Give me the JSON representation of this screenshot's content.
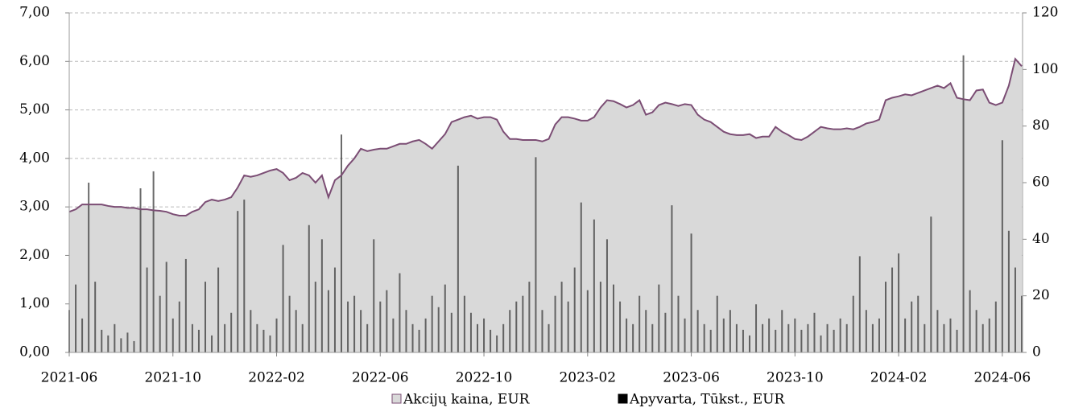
{
  "chart_data": {
    "type": "combo",
    "categories": [
      "2021-06",
      null,
      null,
      null,
      null,
      null,
      null,
      null,
      null,
      null,
      null,
      null,
      null,
      null,
      null,
      null,
      "2021-10",
      null,
      null,
      null,
      null,
      null,
      null,
      null,
      null,
      null,
      null,
      null,
      null,
      null,
      null,
      null,
      "2022-02",
      null,
      null,
      null,
      null,
      null,
      null,
      null,
      null,
      null,
      null,
      null,
      null,
      null,
      null,
      null,
      "2022-06",
      null,
      null,
      null,
      null,
      null,
      null,
      null,
      null,
      null,
      null,
      null,
      null,
      null,
      null,
      null,
      "2022-10",
      null,
      null,
      null,
      null,
      null,
      null,
      null,
      null,
      null,
      null,
      null,
      null,
      null,
      null,
      null,
      "2023-02",
      null,
      null,
      null,
      null,
      null,
      null,
      null,
      null,
      null,
      null,
      null,
      null,
      null,
      null,
      null,
      "2023-06",
      null,
      null,
      null,
      null,
      null,
      null,
      null,
      null,
      null,
      null,
      null,
      null,
      null,
      null,
      null,
      "2023-10",
      null,
      null,
      null,
      null,
      null,
      null,
      null,
      null,
      null,
      null,
      null,
      null,
      null,
      null,
      null,
      "2024-02",
      null,
      null,
      null,
      null,
      null,
      null,
      null,
      null,
      null,
      null,
      null,
      null,
      null,
      null,
      null,
      "2024-06",
      null,
      null,
      null
    ],
    "series": [
      {
        "name": "Akcijų kaina, EUR",
        "kind": "area",
        "color": "#d9d9d9",
        "line_color": "#7b4d74",
        "axis": "y",
        "values": [
          2.9,
          2.95,
          3.05,
          3.05,
          3.05,
          3.05,
          3.02,
          3.0,
          3.0,
          2.98,
          2.98,
          2.95,
          2.95,
          2.93,
          2.92,
          2.9,
          2.85,
          2.82,
          2.82,
          2.9,
          2.95,
          3.1,
          3.15,
          3.12,
          3.15,
          3.2,
          3.4,
          3.65,
          3.62,
          3.65,
          3.7,
          3.75,
          3.78,
          3.7,
          3.55,
          3.6,
          3.7,
          3.65,
          3.5,
          3.65,
          3.2,
          3.55,
          3.65,
          3.85,
          4.0,
          4.2,
          4.15,
          4.18,
          4.2,
          4.2,
          4.25,
          4.3,
          4.3,
          4.35,
          4.38,
          4.3,
          4.2,
          4.35,
          4.5,
          4.75,
          4.8,
          4.85,
          4.88,
          4.82,
          4.85,
          4.85,
          4.8,
          4.55,
          4.4,
          4.4,
          4.38,
          4.38,
          4.38,
          4.35,
          4.4,
          4.7,
          4.85,
          4.85,
          4.82,
          4.78,
          4.78,
          4.85,
          5.05,
          5.2,
          5.18,
          5.12,
          5.05,
          5.1,
          5.2,
          4.9,
          4.95,
          5.1,
          5.15,
          5.12,
          5.08,
          5.12,
          5.1,
          4.9,
          4.8,
          4.75,
          4.65,
          4.55,
          4.5,
          4.48,
          4.48,
          4.5,
          4.42,
          4.45,
          4.45,
          4.65,
          4.55,
          4.48,
          4.4,
          4.38,
          4.45,
          4.55,
          4.65,
          4.62,
          4.6,
          4.6,
          4.62,
          4.6,
          4.65,
          4.72,
          4.75,
          4.8,
          5.2,
          5.25,
          5.28,
          5.32,
          5.3,
          5.35,
          5.4,
          5.45,
          5.5,
          5.45,
          5.55,
          5.25,
          5.22,
          5.2,
          5.4,
          5.42,
          5.15,
          5.1,
          5.15,
          5.5,
          6.05,
          5.9
        ]
      },
      {
        "name": "Apyvarta, Tūkst., EUR",
        "kind": "bar",
        "color": "#3a3a3a",
        "axis": "y2",
        "values": [
          15,
          24,
          12,
          60,
          25,
          8,
          6,
          10,
          5,
          7,
          4,
          58,
          30,
          64,
          20,
          32,
          12,
          18,
          33,
          10,
          8,
          25,
          6,
          30,
          10,
          14,
          50,
          54,
          15,
          10,
          8,
          6,
          12,
          38,
          20,
          15,
          10,
          45,
          25,
          40,
          22,
          30,
          77,
          18,
          20,
          15,
          10,
          40,
          18,
          22,
          12,
          28,
          15,
          10,
          8,
          12,
          20,
          16,
          24,
          14,
          66,
          20,
          14,
          10,
          12,
          8,
          6,
          10,
          15,
          18,
          20,
          25,
          69,
          15,
          10,
          20,
          25,
          18,
          30,
          53,
          22,
          47,
          25,
          40,
          24,
          18,
          12,
          10,
          20,
          15,
          10,
          24,
          14,
          52,
          20,
          12,
          42,
          15,
          10,
          8,
          20,
          12,
          15,
          10,
          8,
          6,
          17,
          10,
          12,
          8,
          15,
          10,
          12,
          8,
          10,
          14,
          6,
          10,
          8,
          12,
          10,
          20,
          34,
          15,
          10,
          12,
          25,
          30,
          35,
          12,
          18,
          20,
          10,
          48,
          15,
          10,
          12,
          8,
          105,
          22,
          15,
          10,
          12,
          18,
          75,
          43,
          30,
          20
        ]
      }
    ],
    "ylim": [
      0,
      7
    ],
    "yticks": [
      {
        "value": 0,
        "label": "0,00"
      },
      {
        "value": 1,
        "label": "1,00"
      },
      {
        "value": 2,
        "label": "2,00"
      },
      {
        "value": 3,
        "label": "3,00"
      },
      {
        "value": 4,
        "label": "4,00"
      },
      {
        "value": 5,
        "label": "5,00"
      },
      {
        "value": 6,
        "label": "6,00"
      },
      {
        "value": 7,
        "label": "7,00"
      }
    ],
    "y2lim": [
      0,
      120
    ],
    "y2ticks": [
      0,
      20,
      40,
      60,
      80,
      100,
      120
    ],
    "grid": true,
    "legend": "bottom"
  }
}
